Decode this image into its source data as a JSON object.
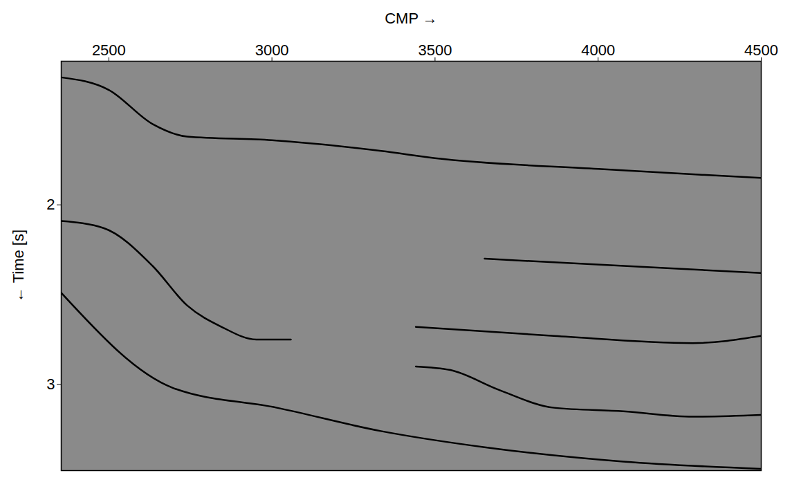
{
  "chart_data": {
    "type": "line",
    "xlabel": "CMP",
    "ylabel": "Time [s]",
    "xlim": [
      2354,
      4500
    ],
    "ylim": [
      1.2,
      3.48
    ],
    "xticks": [
      2500,
      3000,
      3500,
      4000,
      4500
    ],
    "yticks": [
      2,
      3
    ],
    "grid": false,
    "series": [
      {
        "color": "#000000",
        "x": [
          2354,
          2500,
          2634,
          2740,
          3000,
          3335,
          3500,
          4000,
          4290,
          4500
        ],
        "values": [
          1.29,
          1.36,
          1.55,
          1.62,
          1.64,
          1.7,
          1.74,
          1.8,
          1.83,
          1.85
        ]
      },
      {
        "color": "#000000",
        "x": [
          2354,
          2485,
          2634,
          2740,
          2846,
          2952,
          3058
        ],
        "values": [
          2.09,
          2.13,
          2.34,
          2.56,
          2.68,
          2.75,
          2.75
        ]
      },
      {
        "color": "#000000",
        "x": [
          3441,
          3547,
          3695,
          3865,
          4077,
          4290,
          4500
        ],
        "values": [
          2.9,
          2.92,
          3.03,
          3.13,
          3.15,
          3.18,
          3.17
        ]
      },
      {
        "color": "#000000",
        "x": [
          2354,
          2697,
          3015,
          3334,
          3652,
          4077,
          4500
        ],
        "values": [
          2.49,
          3.02,
          3.13,
          3.26,
          3.35,
          3.43,
          3.47
        ]
      },
      {
        "color": "#000000",
        "x": [
          3441,
          3865,
          4290,
          4500
        ],
        "values": [
          2.68,
          2.73,
          2.77,
          2.73
        ]
      },
      {
        "color": "#000000",
        "x": [
          3652,
          4500
        ],
        "values": [
          2.3,
          2.38
        ]
      }
    ]
  }
}
